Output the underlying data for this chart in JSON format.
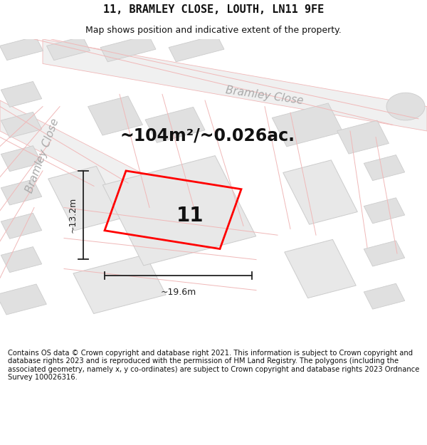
{
  "title": "11, BRAMLEY CLOSE, LOUTH, LN11 9FE",
  "subtitle": "Map shows position and indicative extent of the property.",
  "area_text": "~104m²/~0.026ac.",
  "plot_number": "11",
  "dim_width": "~19.6m",
  "dim_height": "~13.2m",
  "street_label_upper": "Bramley Close",
  "street_label_lower": "Bramley Close",
  "footer": "Contains OS data © Crown copyright and database right 2021. This information is subject to Crown copyright and database rights 2023 and is reproduced with the permission of HM Land Registry. The polygons (including the associated geometry, namely x, y co-ordinates) are subject to Crown copyright and database rights 2023 Ordnance Survey 100026316.",
  "bg_color": "#ffffff",
  "map_bg": "#ffffff",
  "road_color": "#f0b8b8",
  "building_fill": "#e0e0e0",
  "building_edge": "#cccccc",
  "road_fill": "#f5f5f5",
  "plot_color": "#ff0000",
  "dim_color": "#222222",
  "street_color": "#aaaaaa",
  "title_fontsize": 11,
  "subtitle_fontsize": 9,
  "area_fontsize": 17,
  "plot_num_fontsize": 20,
  "street_fontsize": 11,
  "footer_fontsize": 7.2,
  "dim_fontsize": 9
}
